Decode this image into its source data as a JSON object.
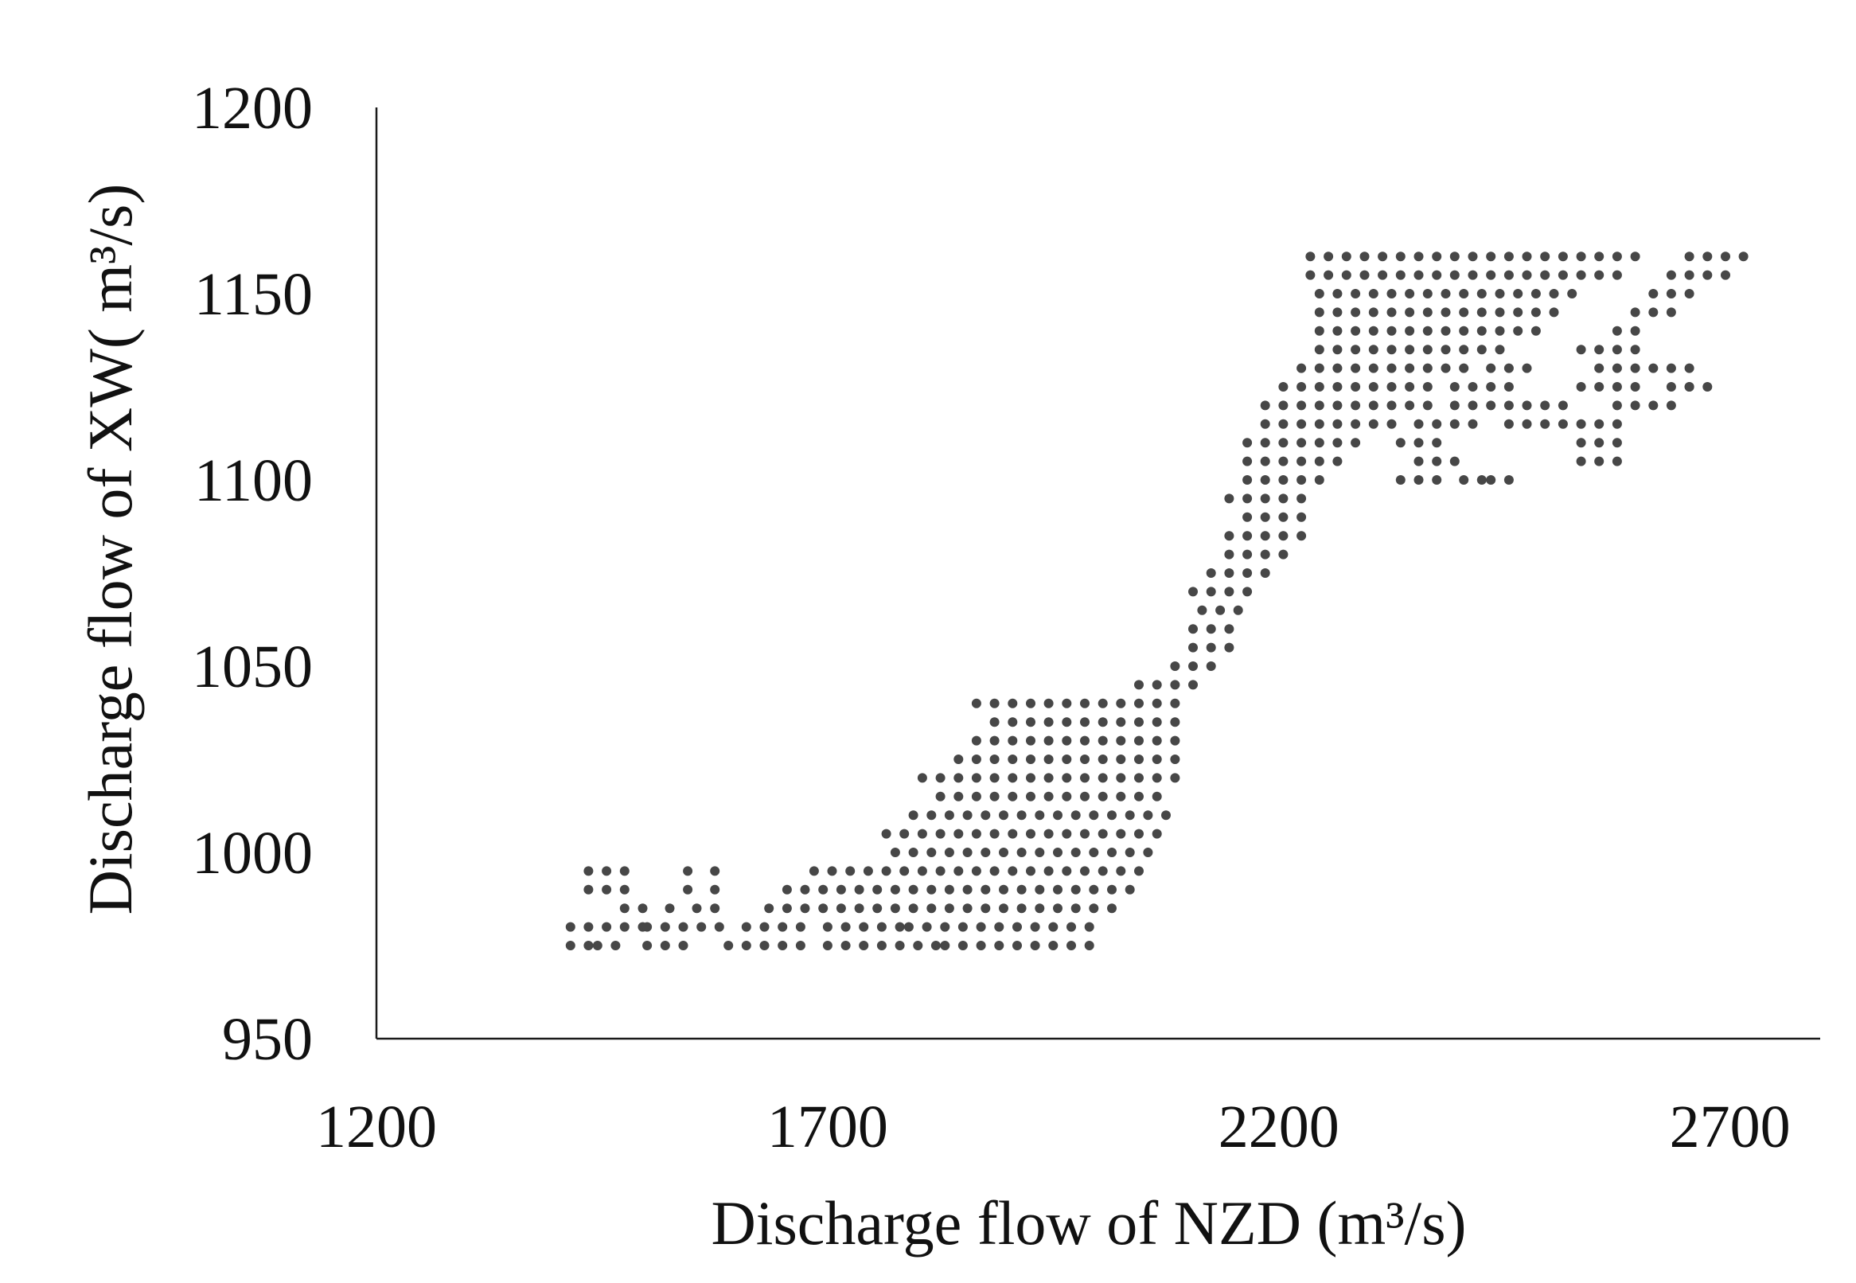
{
  "chart_data": {
    "type": "scatter",
    "title": "",
    "xlabel": "Discharge flow of NZD (m³/s)",
    "ylabel": "Discharge flow of XW( m³/s)",
    "xlim": [
      1200,
      2800
    ],
    "ylim": [
      950,
      1200
    ],
    "xticks": [
      "1200",
      "1700",
      "2200",
      "2700"
    ],
    "yticks": [
      "950",
      "1000",
      "1050",
      "1100",
      "1150",
      "1200"
    ],
    "grid": false,
    "legend": "none",
    "marker_color": "#474747",
    "series": [
      {
        "x_step": 20,
        "y_step": 5,
        "rows": [
          [
            975,
            [
              [
                1415,
                1435
              ],
              [
                1445,
                1475
              ],
              [
                1500,
                1540
              ],
              [
                1590,
                1680
              ],
              [
                1700,
                1780
              ],
              [
                1800,
                1820
              ],
              [
                1830,
                1990
              ]
            ]
          ],
          [
            980,
            [
              [
                1415,
                1495
              ],
              [
                1500,
                1540
              ],
              [
                1560,
                1590
              ],
              [
                1610,
                1680
              ],
              [
                1700,
                1780
              ],
              [
                1790,
                1990
              ]
            ]
          ],
          [
            985,
            [
              [
                1475,
                1505
              ],
              [
                1525,
                1535
              ],
              [
                1555,
                1575
              ],
              [
                1635,
                2015
              ]
            ]
          ],
          [
            990,
            [
              [
                1435,
                1475
              ],
              [
                1545,
                1555
              ],
              [
                1575,
                1585
              ],
              [
                1655,
                2045
              ]
            ]
          ],
          [
            995,
            [
              [
                1435,
                1475
              ],
              [
                1545,
                1555
              ],
              [
                1575,
                1585
              ],
              [
                1685,
                2055
              ]
            ]
          ],
          [
            1000,
            [
              [
                1775,
                2055
              ]
            ]
          ],
          [
            1005,
            [
              [
                1765,
                2075
              ]
            ]
          ],
          [
            1010,
            [
              [
                1795,
                2075
              ]
            ]
          ],
          [
            1015,
            [
              [
                1825,
                2075
              ]
            ]
          ],
          [
            1020,
            [
              [
                1805,
                2095
              ]
            ]
          ],
          [
            1025,
            [
              [
                1845,
                2095
              ]
            ]
          ],
          [
            1030,
            [
              [
                1865,
                2095
              ]
            ]
          ],
          [
            1035,
            [
              [
                1885,
                2095
              ]
            ]
          ],
          [
            1040,
            [
              [
                1865,
                2095
              ]
            ]
          ],
          [
            1045,
            [
              [
                2045,
                2105
              ]
            ]
          ],
          [
            1050,
            [
              [
                2085,
                2125
              ]
            ]
          ],
          [
            1055,
            [
              [
                2105,
                2145
              ]
            ]
          ],
          [
            1060,
            [
              [
                2105,
                2145
              ]
            ]
          ],
          [
            1065,
            [
              [
                2115,
                2155
              ]
            ]
          ],
          [
            1070,
            [
              [
                2105,
                2165
              ]
            ]
          ],
          [
            1075,
            [
              [
                2125,
                2185
              ]
            ]
          ],
          [
            1080,
            [
              [
                2145,
                2205
              ]
            ]
          ],
          [
            1085,
            [
              [
                2145,
                2225
              ]
            ]
          ],
          [
            1090,
            [
              [
                2165,
                2225
              ]
            ]
          ],
          [
            1095,
            [
              [
                2145,
                2225
              ]
            ]
          ],
          [
            1100,
            [
              [
                2165,
                2245
              ],
              [
                2335,
                2375
              ],
              [
                2405,
                2425
              ],
              [
                2435,
                2455
              ]
            ]
          ],
          [
            1105,
            [
              [
                2165,
                2275
              ],
              [
                2355,
                2395
              ],
              [
                2535,
                2575
              ]
            ]
          ],
          [
            1110,
            [
              [
                2165,
                2295
              ],
              [
                2335,
                2375
              ],
              [
                2535,
                2575
              ]
            ]
          ],
          [
            1115,
            [
              [
                2185,
                2335
              ],
              [
                2355,
                2415
              ],
              [
                2455,
                2475
              ],
              [
                2495,
                2515
              ],
              [
                2535,
                2575
              ]
            ]
          ],
          [
            1120,
            [
              [
                2185,
                2375
              ],
              [
                2395,
                2435
              ],
              [
                2455,
                2475
              ],
              [
                2495,
                2515
              ],
              [
                2575,
                2595
              ],
              [
                2615,
                2635
              ]
            ]
          ],
          [
            1125,
            [
              [
                2205,
                2375
              ],
              [
                2395,
                2455
              ],
              [
                2535,
                2595
              ],
              [
                2635,
                2655
              ],
              [
                2655,
                2675
              ]
            ]
          ],
          [
            1130,
            [
              [
                2225,
                2415
              ],
              [
                2435,
                2475
              ],
              [
                2555,
                2615
              ],
              [
                2635,
                2655
              ]
            ]
          ],
          [
            1135,
            [
              [
                2245,
                2445
              ],
              [
                2535,
                2595
              ]
            ]
          ],
          [
            1140,
            [
              [
                2245,
                2495
              ],
              [
                2575,
                2595
              ]
            ]
          ],
          [
            1145,
            [
              [
                2245,
                2515
              ],
              [
                2595,
                2635
              ]
            ]
          ],
          [
            1150,
            [
              [
                2245,
                2535
              ],
              [
                2615,
                2655
              ]
            ]
          ],
          [
            1155,
            [
              [
                2235,
                2575
              ],
              [
                2635,
                2695
              ]
            ]
          ],
          [
            1160,
            [
              [
                2235,
                2595
              ],
              [
                2655,
                2715
              ]
            ]
          ]
        ]
      }
    ]
  }
}
